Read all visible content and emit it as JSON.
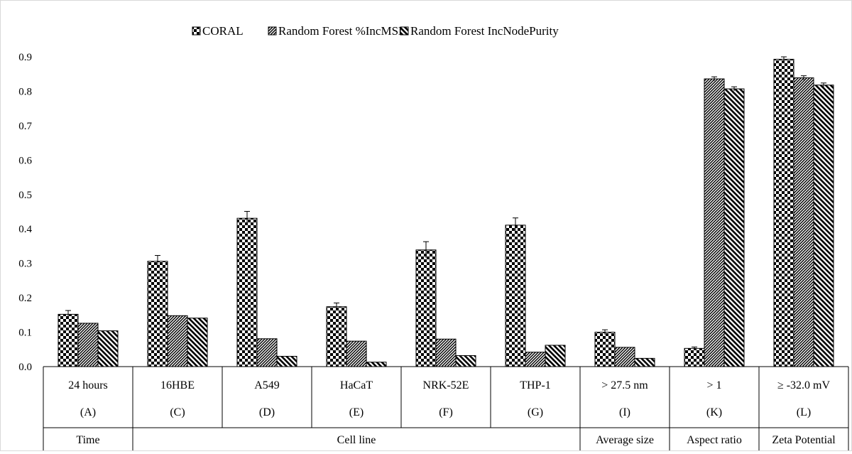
{
  "chart_data": {
    "type": "bar",
    "title": "",
    "xlabel": "",
    "ylabel": "",
    "ylim": [
      0,
      0.9
    ],
    "yticks": [
      "0.0",
      "0.1",
      "0.2",
      "0.3",
      "0.4",
      "0.5",
      "0.6",
      "0.7",
      "0.8",
      "0.9"
    ],
    "grid": false,
    "legend_position": "top",
    "categories": [
      "24 hours",
      "16HBE",
      "A549",
      "HaCaT",
      "NRK-52E",
      "THP-1",
      "> 27.5 nm",
      "> 1",
      "≥ -32.0 mV"
    ],
    "category_codes": [
      "(A)",
      "(C)",
      "(D)",
      "(E)",
      "(F)",
      "(G)",
      "(I)",
      "(K)",
      "(L)"
    ],
    "groups": [
      {
        "label": "Time",
        "span": [
          0,
          0
        ]
      },
      {
        "label": "Cell line",
        "span": [
          1,
          5
        ]
      },
      {
        "label": "Average size",
        "span": [
          6,
          6
        ]
      },
      {
        "label": "Aspect ratio",
        "span": [
          7,
          7
        ]
      },
      {
        "label": "Zeta Potential",
        "span": [
          8,
          8
        ]
      }
    ],
    "series": [
      {
        "name": "CORAL",
        "pattern": "checker",
        "values": [
          0.152,
          0.306,
          0.431,
          0.174,
          0.339,
          0.411,
          0.1,
          0.053,
          0.893
        ],
        "errors": [
          0.011,
          0.017,
          0.02,
          0.011,
          0.024,
          0.021,
          0.007,
          0.004,
          0.007
        ]
      },
      {
        "name": "Random Forest %IncMSE",
        "pattern": "diagonal-dense",
        "values": [
          0.126,
          0.148,
          0.081,
          0.074,
          0.08,
          0.042,
          0.056,
          0.836,
          0.839
        ],
        "errors": [
          0.0,
          0.0,
          0.0,
          0.0,
          0.0,
          0.0,
          0.0,
          0.006,
          0.006
        ]
      },
      {
        "name": "Random Forest IncNodePurity",
        "pattern": "diagonal-wide",
        "values": [
          0.104,
          0.141,
          0.03,
          0.013,
          0.032,
          0.062,
          0.024,
          0.807,
          0.818
        ],
        "errors": [
          0.0,
          0.0,
          0.0,
          0.0,
          0.0,
          0.0,
          0.0,
          0.006,
          0.006
        ]
      }
    ]
  }
}
